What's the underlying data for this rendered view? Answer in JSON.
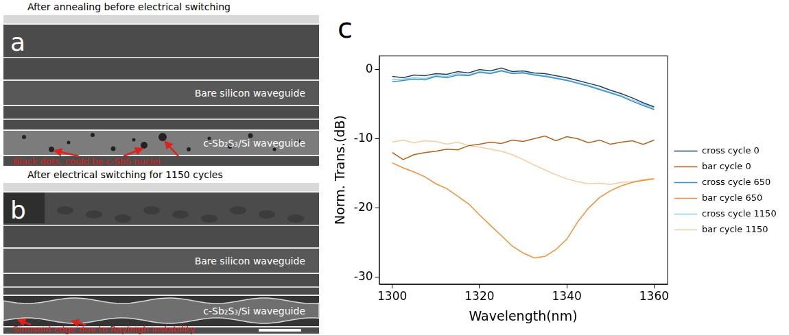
{
  "panels": [
    {
      "letter": "a",
      "title": "After annealing before electrical switching",
      "labels": [
        "Bare silicon waveguide",
        "c-Sb₂S₃/Si waveguide"
      ],
      "annotation": "Black dots, could be c-SbS nuclei"
    },
    {
      "letter": "b",
      "title": "After electrical switching for 1150 cycles",
      "labels": [
        "Bare silicon waveguide",
        "c-Sb₂S₃/Si waveguide"
      ],
      "annotation": "Sinusoid edge due to Rayleigh instability"
    }
  ],
  "chart_data": {
    "letter": "c",
    "type": "line",
    "x_label": "Wavelength(nm)",
    "y_label": "Norm. Trans.(dB)",
    "x": [
      1300,
      1302.5,
      1305,
      1307.5,
      1310,
      1312.5,
      1315,
      1317.5,
      1320,
      1322.5,
      1325,
      1327.5,
      1330,
      1332.5,
      1335,
      1337.5,
      1340,
      1342.5,
      1345,
      1347.5,
      1350,
      1352.5,
      1355,
      1357.5,
      1360
    ],
    "xlim": [
      1297,
      1363
    ],
    "xticks": [
      1300,
      1320,
      1340,
      1360
    ],
    "ylim": [
      -31,
      2
    ],
    "yticks": [
      -30,
      -20,
      -10,
      0
    ],
    "grid": false,
    "legend": "right",
    "series": [
      {
        "name": "cross cycle 0",
        "color": "#23415f",
        "values": [
          -1.0,
          -1.2,
          -0.8,
          -0.9,
          -0.6,
          -0.7,
          -0.3,
          -0.5,
          0.0,
          -0.2,
          0.2,
          -0.3,
          -0.2,
          -0.5,
          -0.6,
          -0.9,
          -1.2,
          -1.6,
          -2.0,
          -2.4,
          -3.0,
          -3.5,
          -4.1,
          -4.8,
          -5.4
        ]
      },
      {
        "name": "bar cycle 0",
        "color": "#b0621c",
        "values": [
          -12.0,
          -13.0,
          -12.3,
          -12.0,
          -11.8,
          -11.5,
          -11.6,
          -11.0,
          -10.8,
          -10.5,
          -10.7,
          -10.2,
          -10.4,
          -10.0,
          -9.6,
          -10.3,
          -9.7,
          -10.0,
          -10.6,
          -10.2,
          -10.8,
          -10.5,
          -10.3,
          -10.8,
          -10.2
        ]
      },
      {
        "name": "cross cycle 650",
        "color": "#3a8fc4",
        "values": [
          -1.8,
          -1.6,
          -1.4,
          -1.5,
          -1.0,
          -1.2,
          -0.8,
          -0.9,
          -0.4,
          -0.6,
          -0.2,
          -0.6,
          -0.5,
          -0.8,
          -1.0,
          -1.3,
          -1.6,
          -2.0,
          -2.4,
          -2.9,
          -3.4,
          -3.9,
          -4.6,
          -5.2,
          -5.8
        ]
      },
      {
        "name": "bar cycle 650",
        "color": "#f0903a",
        "values": [
          -13.5,
          -14.2,
          -14.8,
          -15.5,
          -16.5,
          -17.2,
          -18.3,
          -19.4,
          -21.0,
          -22.5,
          -24.0,
          -25.5,
          -26.5,
          -27.2,
          -27.0,
          -26.0,
          -24.5,
          -22.0,
          -20.0,
          -18.5,
          -17.5,
          -16.8,
          -16.3,
          -16.0,
          -15.8
        ]
      },
      {
        "name": "cross cycle 1150",
        "color": "#8ecae6",
        "values": [
          -1.5,
          -1.4,
          -1.2,
          -1.3,
          -0.9,
          -1.0,
          -0.6,
          -0.8,
          -0.3,
          -0.5,
          -0.1,
          -0.5,
          -0.4,
          -0.7,
          -0.9,
          -1.2,
          -1.5,
          -1.9,
          -2.3,
          -2.8,
          -3.3,
          -3.8,
          -4.4,
          -5.0,
          -5.6
        ]
      },
      {
        "name": "bar cycle 1150",
        "color": "#f5cba0",
        "values": [
          -10.5,
          -10.2,
          -10.6,
          -10.3,
          -10.4,
          -10.8,
          -10.5,
          -11.0,
          -11.2,
          -11.5,
          -11.8,
          -12.3,
          -13.0,
          -13.8,
          -14.5,
          -15.2,
          -15.8,
          -16.2,
          -16.5,
          -16.4,
          -16.6,
          -16.3,
          -16.2,
          -15.9,
          -15.7
        ]
      }
    ]
  }
}
